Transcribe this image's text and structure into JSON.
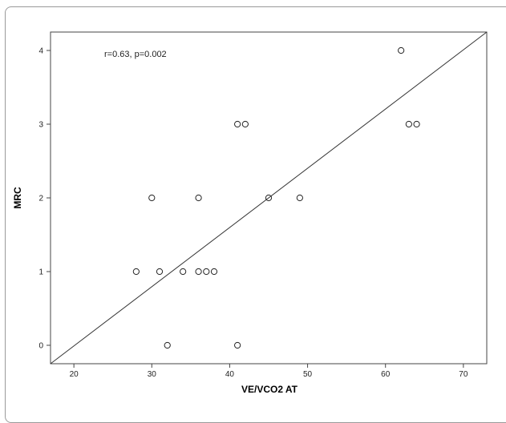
{
  "chart_data": {
    "type": "scatter",
    "title": "",
    "xlabel": "VE/VCO2 AT",
    "ylabel": "MRC",
    "annotation": "r=0.63, p=0.002",
    "xlim": [
      17,
      73
    ],
    "ylim": [
      -0.25,
      4.25
    ],
    "xticks": [
      20,
      30,
      40,
      50,
      60,
      70
    ],
    "yticks": [
      0,
      1,
      2,
      3,
      4
    ],
    "grid": false,
    "legend": "none",
    "fit_line": {
      "x": [
        17,
        73
      ],
      "y": [
        -0.25,
        4.25
      ]
    },
    "points": [
      {
        "x": 62,
        "y": 4
      },
      {
        "x": 41,
        "y": 3
      },
      {
        "x": 42,
        "y": 3
      },
      {
        "x": 63,
        "y": 3
      },
      {
        "x": 64,
        "y": 3
      },
      {
        "x": 30,
        "y": 2
      },
      {
        "x": 36,
        "y": 2
      },
      {
        "x": 45,
        "y": 2
      },
      {
        "x": 49,
        "y": 2
      },
      {
        "x": 28,
        "y": 1
      },
      {
        "x": 31,
        "y": 1
      },
      {
        "x": 34,
        "y": 1
      },
      {
        "x": 36,
        "y": 1
      },
      {
        "x": 37,
        "y": 1
      },
      {
        "x": 38,
        "y": 1
      },
      {
        "x": 32,
        "y": 0
      },
      {
        "x": 41,
        "y": 0
      }
    ],
    "colors": {
      "marker_stroke": "#222222",
      "line": "#333333",
      "axis": "#444444"
    }
  }
}
